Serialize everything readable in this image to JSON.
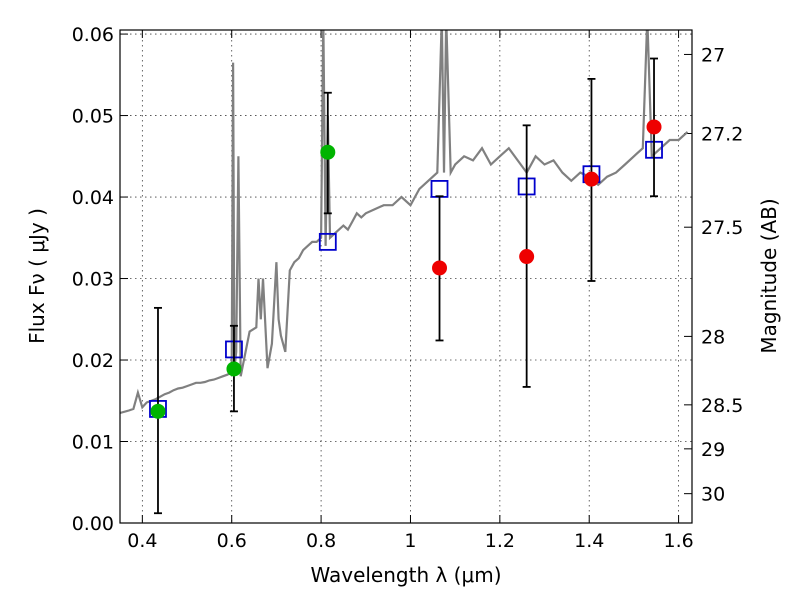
{
  "chart_data": {
    "type": "scatter",
    "title": "",
    "xlabel": "Wavelength  λ (μm)",
    "ylabel": "Flux  Fν  ( μJy )",
    "y2label": "Magnitude (AB)",
    "xlim": [
      0.35,
      1.63
    ],
    "ylim": [
      0.0,
      0.0605
    ],
    "grid": true,
    "x_ticks": [
      0.4,
      0.6,
      0.8,
      1.0,
      1.2,
      1.4,
      1.6
    ],
    "x_tick_labels": [
      "0.4",
      "0.6",
      "0.8",
      "1",
      "1.2",
      "1.4",
      "1.6"
    ],
    "y_ticks": [
      0.0,
      0.01,
      0.02,
      0.03,
      0.04,
      0.05,
      0.06
    ],
    "y_tick_labels": [
      "0.00",
      "0.01",
      "0.02",
      "0.03",
      "0.04",
      "0.05",
      "0.06"
    ],
    "y2_ticks": [
      {
        "flux": 0.0575,
        "label": "27"
      },
      {
        "flux": 0.0478,
        "label": "27.2"
      },
      {
        "flux": 0.0363,
        "label": "27.5"
      },
      {
        "flux": 0.0229,
        "label": "28"
      },
      {
        "flux": 0.0145,
        "label": "28.5"
      },
      {
        "flux": 0.0091,
        "label": "29"
      },
      {
        "flux": 0.0036,
        "label": "30"
      }
    ],
    "colors": {
      "model": "#808080",
      "model_points": "#0000cc",
      "green_points": "#00b400",
      "red_points": "#ee0000",
      "errorbar": "#000000"
    },
    "series": [
      {
        "kind": "line",
        "x": [
          0.35,
          0.37,
          0.38,
          0.39,
          0.4,
          0.41,
          0.42,
          0.43,
          0.44,
          0.45,
          0.46,
          0.47,
          0.48,
          0.49,
          0.5,
          0.51,
          0.52,
          0.53,
          0.54,
          0.55,
          0.56,
          0.57,
          0.58,
          0.59,
          0.6,
          0.603,
          0.606,
          0.61,
          0.615,
          0.62,
          0.64,
          0.655,
          0.66,
          0.665,
          0.67,
          0.68,
          0.69,
          0.7,
          0.705,
          0.71,
          0.72,
          0.73,
          0.74,
          0.75,
          0.76,
          0.77,
          0.78,
          0.79,
          0.8,
          0.805,
          0.81,
          0.815,
          0.82,
          0.83,
          0.84,
          0.85,
          0.86,
          0.87,
          0.88,
          0.89,
          0.9,
          0.92,
          0.94,
          0.96,
          0.98,
          1.0,
          1.02,
          1.04,
          1.06,
          1.07,
          1.075,
          1.08,
          1.09,
          1.1,
          1.12,
          1.14,
          1.16,
          1.18,
          1.2,
          1.22,
          1.24,
          1.26,
          1.28,
          1.3,
          1.32,
          1.34,
          1.36,
          1.38,
          1.4,
          1.42,
          1.44,
          1.46,
          1.48,
          1.5,
          1.52,
          1.53,
          1.54,
          1.56,
          1.58,
          1.6,
          1.62
        ],
        "y": [
          0.0135,
          0.0138,
          0.014,
          0.016,
          0.0142,
          0.0148,
          0.015,
          0.0152,
          0.0155,
          0.0158,
          0.016,
          0.0163,
          0.0165,
          0.0166,
          0.0168,
          0.017,
          0.0172,
          0.0172,
          0.0173,
          0.0175,
          0.0176,
          0.0178,
          0.018,
          0.0182,
          0.0185,
          0.0565,
          0.019,
          0.021,
          0.045,
          0.018,
          0.0235,
          0.024,
          0.03,
          0.025,
          0.03,
          0.019,
          0.022,
          0.032,
          0.025,
          0.023,
          0.021,
          0.031,
          0.032,
          0.0325,
          0.0335,
          0.034,
          0.0345,
          0.0345,
          0.035,
          0.062,
          0.034,
          0.05,
          0.035,
          0.0355,
          0.036,
          0.0365,
          0.036,
          0.037,
          0.038,
          0.0375,
          0.038,
          0.0385,
          0.039,
          0.039,
          0.04,
          0.039,
          0.041,
          0.042,
          0.043,
          0.062,
          0.043,
          0.062,
          0.043,
          0.044,
          0.045,
          0.0445,
          0.046,
          0.044,
          0.045,
          0.046,
          0.0445,
          0.043,
          0.045,
          0.044,
          0.0445,
          0.043,
          0.042,
          0.043,
          0.0425,
          0.0415,
          0.0425,
          0.043,
          0.044,
          0.045,
          0.046,
          0.062,
          0.045,
          0.046,
          0.047,
          0.047,
          0.048
        ]
      },
      {
        "kind": "squares",
        "x": [
          0.435,
          0.605,
          0.815,
          1.065,
          1.26,
          1.405,
          1.545
        ],
        "y": [
          0.014,
          0.0213,
          0.0345,
          0.041,
          0.0413,
          0.0428,
          0.0458
        ]
      },
      {
        "kind": "points",
        "x": [
          0.435,
          0.605,
          0.815
        ],
        "y": [
          0.0137,
          0.0189,
          0.0455
        ],
        "yerr_low": [
          0.0012,
          0.0137,
          0.038
        ],
        "yerr_high": [
          0.0264,
          0.0242,
          0.0528
        ]
      },
      {
        "kind": "points",
        "x": [
          1.065,
          1.26,
          1.405,
          1.545
        ],
        "y": [
          0.0313,
          0.0327,
          0.0422,
          0.0486
        ],
        "yerr_low": [
          0.0224,
          0.0167,
          0.0297,
          0.0401
        ],
        "yerr_high": [
          0.0401,
          0.0488,
          0.0545,
          0.057
        ]
      }
    ]
  }
}
